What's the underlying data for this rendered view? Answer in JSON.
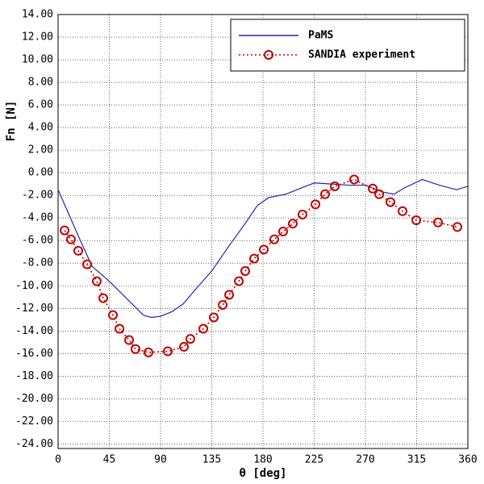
{
  "chart_data": {
    "type": "line",
    "xlabel": "θ [deg]",
    "ylabel": "Fn [N]",
    "xlim": [
      0,
      360
    ],
    "ylim": [
      -24.4,
      14
    ],
    "xticks": [
      0,
      45,
      90,
      135,
      180,
      225,
      270,
      315,
      360
    ],
    "yticks": [
      {
        "value": 14,
        "label": "14.00"
      },
      {
        "value": 12,
        "label": "12.00"
      },
      {
        "value": 10,
        "label": "10.00"
      },
      {
        "value": 8,
        "label": "8.00"
      },
      {
        "value": 6,
        "label": "6.00"
      },
      {
        "value": 4,
        "label": "4.00"
      },
      {
        "value": 2,
        "label": "2.00"
      },
      {
        "value": 0,
        "label": "0.00"
      },
      {
        "value": -2,
        "label": "-2.00"
      },
      {
        "value": -4,
        "label": "-4.00"
      },
      {
        "value": -6,
        "label": "-6.00"
      },
      {
        "value": -8,
        "label": "-8.00"
      },
      {
        "value": -10,
        "label": "-10.00"
      },
      {
        "value": -12,
        "label": "-12.00"
      },
      {
        "value": -14,
        "label": "-14.00"
      },
      {
        "value": -16,
        "label": "-16.00"
      },
      {
        "value": -18,
        "label": "-18.00"
      },
      {
        "value": -20,
        "label": "-20.00"
      },
      {
        "value": -22,
        "label": "-22.00"
      },
      {
        "value": -24,
        "label": "-24.00"
      }
    ],
    "grid": true,
    "legend": "upper right",
    "series": [
      {
        "name": "PaMS",
        "color": "#2424b4",
        "marker": false,
        "dash": false,
        "x": [
          0,
          20,
          30,
          45,
          60,
          75,
          82,
          90,
          100,
          110,
          120,
          135,
          150,
          165,
          175,
          185,
          200,
          215,
          225,
          240,
          255,
          270,
          285,
          295,
          305,
          320,
          335,
          350,
          360
        ],
        "values": [
          -1.5,
          -6.1,
          -8.3,
          -9.6,
          -11.1,
          -12.6,
          -12.8,
          -12.7,
          -12.3,
          -11.6,
          -10.4,
          -8.7,
          -6.5,
          -4.4,
          -2.9,
          -2.2,
          -1.9,
          -1.3,
          -0.9,
          -1.0,
          -1.1,
          -1.1,
          -1.7,
          -1.9,
          -1.3,
          -0.6,
          -1.1,
          -1.5,
          -1.2
        ]
      },
      {
        "name": "SANDIA experiment",
        "color": "#c00000",
        "marker": true,
        "dash": true,
        "x": [
          5.7,
          11.3,
          17.7,
          25.5,
          34.0,
          39.7,
          48.2,
          53.9,
          62.4,
          68.0,
          79.4,
          96.4,
          110.6,
          116.2,
          127.6,
          136.8,
          144.6,
          150.3,
          158.8,
          164.4,
          172.2,
          180.7,
          189.9,
          197.7,
          206.2,
          214.7,
          226.1,
          234.6,
          243.1,
          260.1,
          276.4,
          282.1,
          292.0,
          302.6,
          314.7,
          333.8,
          350.8
        ],
        "values": [
          -5.1,
          -5.9,
          -6.9,
          -8.1,
          -9.6,
          -11.1,
          -12.6,
          -13.8,
          -14.8,
          -15.6,
          -15.9,
          -15.8,
          -15.4,
          -14.7,
          -13.8,
          -12.8,
          -11.7,
          -10.8,
          -9.6,
          -8.7,
          -7.6,
          -6.8,
          -5.9,
          -5.2,
          -4.5,
          -3.7,
          -2.8,
          -1.9,
          -1.2,
          -0.6,
          -1.4,
          -1.9,
          -2.6,
          -3.4,
          -4.2,
          -4.4,
          -4.8
        ]
      }
    ]
  }
}
